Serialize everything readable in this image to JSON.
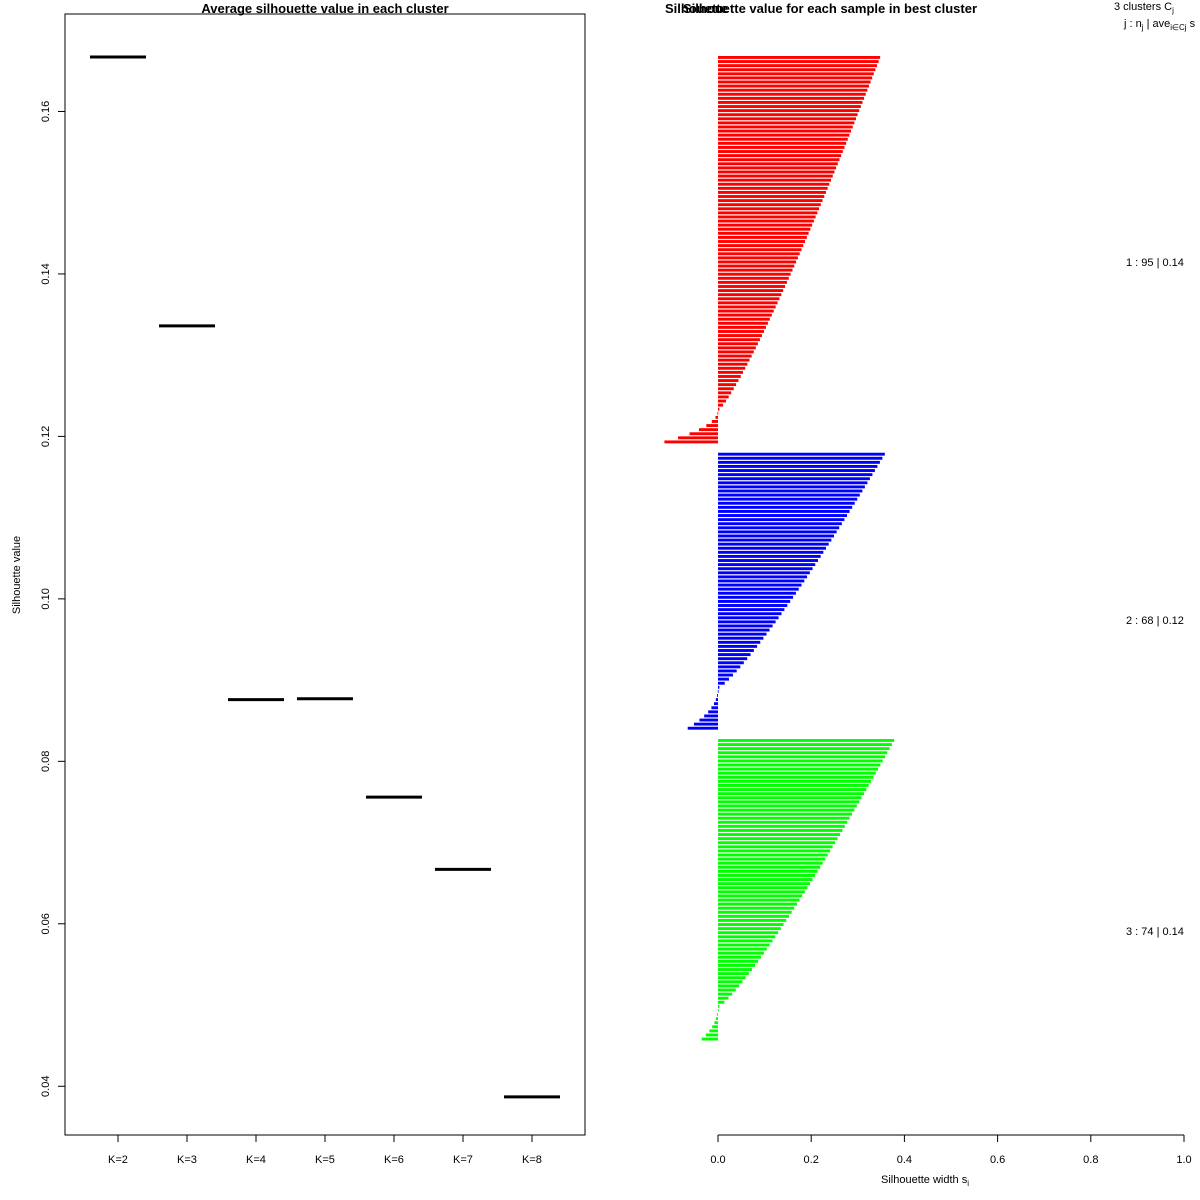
{
  "chart_data": [
    {
      "type": "line",
      "title": "Average silhouette value in each cluster",
      "xlabel": "",
      "ylabel": "Silhouette value",
      "categories": [
        "K=2",
        "K=3",
        "K=4",
        "K=5",
        "K=6",
        "K=7",
        "K=8"
      ],
      "values": [
        0.1667,
        0.1336,
        0.0876,
        0.0877,
        0.0756,
        0.0667,
        0.0387
      ],
      "yticks": [
        "0.04",
        "0.06",
        "0.08",
        "0.10",
        "0.12",
        "0.14",
        "0.16"
      ],
      "ylim": [
        0.034,
        0.172
      ],
      "grid": false,
      "color": "#000000"
    },
    {
      "type": "bar",
      "title": "Silhouette value for each sample in best cluster",
      "overlap_text": "Silhouette",
      "xlabel": "Silhouette width s",
      "xlabel_sub": "i",
      "xticks": [
        "0.0",
        "0.2",
        "0.4",
        "0.6",
        "0.8",
        "1.0"
      ],
      "xlim": [
        0,
        1
      ],
      "legend": {
        "header1": "3  clusters  C",
        "header1_sub": "j",
        "header2": "j :  n",
        "header2_sub1": "j",
        "header2_mid": " | ave",
        "header2_sub2": "i∈Cj",
        "header2_end": "  s",
        "entries": [
          "1 :   95  |  0.14",
          "2 :   68  |  0.12",
          "3 :   74  |  0.14"
        ]
      },
      "clusters": [
        {
          "id": 1,
          "n": 95,
          "avg": 0.14,
          "color": "#ff0000",
          "max": 0.345,
          "min": -0.115,
          "negatives": 8
        },
        {
          "id": 2,
          "n": 68,
          "avg": 0.12,
          "color": "#0000ff",
          "max": 0.355,
          "min": -0.065,
          "negatives": 10
        },
        {
          "id": 3,
          "n": 74,
          "avg": 0.14,
          "color": "#00ff00",
          "max": 0.375,
          "min": -0.035,
          "negatives": 8
        }
      ]
    }
  ]
}
